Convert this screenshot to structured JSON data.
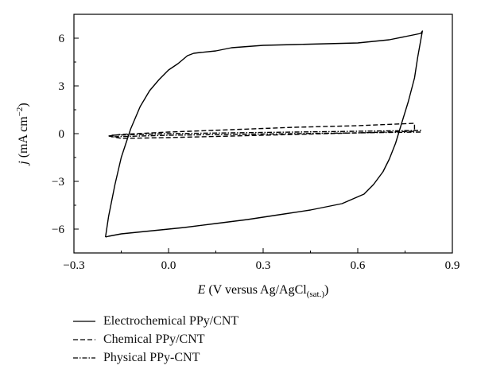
{
  "chart_data": {
    "type": "line",
    "title": "",
    "xlabel": {
      "var": "E",
      "text": " (V versus Ag/AgCl",
      "sub": "(sat.)",
      "close": ")"
    },
    "ylabel": {
      "var": "j",
      "text": " (mA cm",
      "sup": "−2",
      "close": ")"
    },
    "xlim": [
      -0.3,
      0.9
    ],
    "ylim": [
      -7.5,
      7.5
    ],
    "xticks": [
      -0.3,
      0.0,
      0.3,
      0.6,
      0.9
    ],
    "xtick_labels": [
      "−0.3",
      "0.0",
      "0.3",
      "0.6",
      "0.9"
    ],
    "yticks": [
      -6,
      -3,
      0,
      3,
      6
    ],
    "ytick_labels": [
      "−6",
      "−3",
      "0",
      "3",
      "6"
    ],
    "grid": false,
    "legend_position": "below-left",
    "series": [
      {
        "name": "Electrochemical PPy/CNT",
        "dash": "solid",
        "color": "#000000",
        "x": [
          -0.2,
          -0.19,
          -0.17,
          -0.15,
          -0.12,
          -0.09,
          -0.06,
          -0.03,
          0.0,
          0.03,
          0.06,
          0.08,
          0.1,
          0.15,
          0.2,
          0.3,
          0.4,
          0.5,
          0.6,
          0.7,
          0.8,
          0.805,
          0.79,
          0.78,
          0.76,
          0.74,
          0.72,
          0.7,
          0.68,
          0.65,
          0.62,
          0.55,
          0.45,
          0.35,
          0.25,
          0.15,
          0.05,
          0.0,
          -0.05,
          -0.1,
          -0.15,
          -0.19,
          -0.2
        ],
        "y": [
          -6.5,
          -5.2,
          -3.2,
          -1.5,
          0.3,
          1.7,
          2.7,
          3.4,
          4.0,
          4.4,
          4.9,
          5.05,
          5.1,
          5.2,
          5.4,
          5.55,
          5.6,
          5.65,
          5.7,
          5.9,
          6.3,
          6.45,
          4.8,
          3.5,
          2.0,
          0.7,
          -0.6,
          -1.6,
          -2.4,
          -3.2,
          -3.8,
          -4.4,
          -4.8,
          -5.1,
          -5.4,
          -5.65,
          -5.9,
          -6.0,
          -6.1,
          -6.2,
          -6.3,
          -6.45,
          -6.5
        ]
      },
      {
        "name": "Chemical PPy/CNT",
        "dash": "dashed",
        "color": "#000000",
        "x": [
          -0.19,
          -0.15,
          0.0,
          0.2,
          0.4,
          0.6,
          0.78,
          0.78,
          0.6,
          0.4,
          0.2,
          0.0,
          -0.15,
          -0.19
        ],
        "y": [
          -0.15,
          -0.05,
          0.1,
          0.25,
          0.4,
          0.5,
          0.65,
          0.15,
          0.05,
          -0.05,
          -0.15,
          -0.25,
          -0.3,
          -0.15
        ]
      },
      {
        "name": "Physical PPy-CNT",
        "dash": "dashdot",
        "color": "#000000",
        "x": [
          -0.18,
          0.0,
          0.2,
          0.4,
          0.6,
          0.8,
          0.8,
          0.6,
          0.4,
          0.2,
          0.0,
          -0.18,
          -0.18
        ],
        "y": [
          -0.1,
          0.0,
          0.05,
          0.1,
          0.15,
          0.2,
          0.1,
          0.05,
          0.0,
          -0.05,
          -0.1,
          -0.2,
          -0.1
        ]
      }
    ]
  }
}
